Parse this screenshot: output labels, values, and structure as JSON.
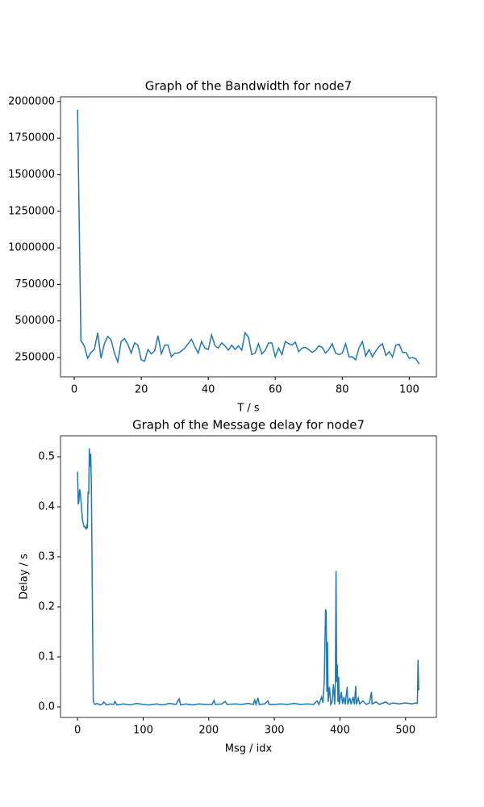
{
  "chart_data": [
    {
      "type": "line",
      "title": "Graph of the Bandwidth for node7",
      "xlabel": "T / s",
      "x": [
        1,
        2,
        3,
        4,
        5,
        6,
        7,
        8,
        9,
        10,
        11,
        12,
        13,
        14,
        15,
        16,
        17,
        18,
        19,
        20,
        21,
        22,
        23,
        24,
        25,
        26,
        27,
        28,
        29,
        30,
        31,
        32,
        33,
        34,
        35,
        36,
        37,
        38,
        39,
        40,
        41,
        42,
        43,
        44,
        45,
        46,
        47,
        48,
        49,
        50,
        51,
        52,
        53,
        54,
        55,
        56,
        57,
        58,
        59,
        60,
        61,
        62,
        63,
        64,
        65,
        66,
        67,
        68,
        69,
        70,
        71,
        72,
        73,
        74,
        75,
        76,
        77,
        78,
        79,
        80,
        81,
        82,
        83,
        84,
        85,
        86,
        87,
        88,
        89,
        90,
        91,
        92,
        93,
        94,
        95,
        96,
        97,
        98,
        99,
        100,
        101,
        102,
        103
      ],
      "series": [
        {
          "color": "#1f77b4",
          "values": [
            1945000,
            365000,
            330000,
            245000,
            285000,
            305000,
            420000,
            245000,
            345000,
            395000,
            370000,
            280000,
            220000,
            360000,
            380000,
            340000,
            280000,
            350000,
            335000,
            235000,
            225000,
            305000,
            275000,
            295000,
            400000,
            275000,
            335000,
            335000,
            255000,
            280000,
            280000,
            295000,
            315000,
            345000,
            375000,
            325000,
            280000,
            360000,
            315000,
            305000,
            405000,
            330000,
            315000,
            350000,
            330000,
            300000,
            335000,
            305000,
            330000,
            300000,
            420000,
            390000,
            270000,
            280000,
            345000,
            275000,
            300000,
            350000,
            350000,
            255000,
            315000,
            270000,
            360000,
            345000,
            335000,
            355000,
            290000,
            315000,
            320000,
            305000,
            285000,
            300000,
            330000,
            320000,
            280000,
            305000,
            345000,
            280000,
            270000,
            280000,
            345000,
            255000,
            255000,
            235000,
            315000,
            360000,
            260000,
            305000,
            255000,
            295000,
            325000,
            345000,
            265000,
            290000,
            255000,
            335000,
            340000,
            285000,
            285000,
            245000,
            250000,
            240000,
            205000
          ]
        }
      ],
      "xlim": [
        -4.1,
        108.1
      ],
      "xticks": [
        0,
        20,
        40,
        60,
        80,
        100
      ],
      "ylim": [
        118000,
        2032000
      ],
      "yticks": [
        250000,
        500000,
        750000,
        1000000,
        1250000,
        1500000,
        1750000,
        2000000
      ]
    },
    {
      "type": "line",
      "title": "Graph of the Message delay for node7",
      "xlabel": "Msg / idx",
      "ylabel": "Delay / s",
      "x": [
        0,
        1,
        2,
        3,
        4,
        5,
        6,
        7,
        8,
        9,
        10,
        11,
        12,
        13,
        14,
        15,
        16,
        17,
        18,
        19,
        20,
        21,
        22,
        23,
        24,
        25,
        26,
        30,
        34,
        38,
        40,
        44,
        50,
        55,
        57,
        60,
        70,
        80,
        90,
        100,
        110,
        120,
        130,
        140,
        150,
        153,
        155,
        157,
        165,
        175,
        185,
        195,
        205,
        208,
        210,
        220,
        225,
        228,
        240,
        250,
        260,
        268,
        270,
        272,
        275,
        277,
        285,
        290,
        292,
        300,
        310,
        320,
        330,
        340,
        350,
        360,
        365,
        368,
        372,
        374,
        376,
        378,
        379,
        380,
        381,
        382,
        384,
        386,
        388,
        390,
        392,
        393,
        394,
        395,
        396,
        397,
        398,
        399,
        402,
        404,
        406,
        408,
        411,
        412,
        415,
        417,
        420,
        422,
        424,
        425,
        428,
        430,
        435,
        440,
        445,
        448,
        449,
        455,
        460,
        470,
        475,
        480,
        490,
        500,
        510,
        515,
        518,
        519,
        520,
        521
      ],
      "series": [
        {
          "color": "#1f77b4",
          "values": [
            0.47,
            0.405,
            0.41,
            0.435,
            0.43,
            0.415,
            0.4,
            0.38,
            0.37,
            0.365,
            0.36,
            0.36,
            0.358,
            0.356,
            0.365,
            0.357,
            0.43,
            0.425,
            0.517,
            0.48,
            0.506,
            0.45,
            0.3,
            0.15,
            0.012,
            0.008,
            0.005,
            0.007,
            0.004,
            0.006,
            0.01,
            0.004,
            0.006,
            0.005,
            0.011,
            0.004,
            0.006,
            0.004,
            0.007,
            0.005,
            0.004,
            0.006,
            0.004,
            0.007,
            0.005,
            0.012,
            0.016,
            0.004,
            0.006,
            0.004,
            0.006,
            0.005,
            0.005,
            0.013,
            0.005,
            0.006,
            0.011,
            0.005,
            0.006,
            0.005,
            0.007,
            0.005,
            0.014,
            0.005,
            0.018,
            0.005,
            0.006,
            0.012,
            0.005,
            0.005,
            0.006,
            0.005,
            0.007,
            0.005,
            0.006,
            0.005,
            0.012,
            0.005,
            0.02,
            0.008,
            0.05,
            0.195,
            0.19,
            0.03,
            0.13,
            0.01,
            0.04,
            0.005,
            0.01,
            0.045,
            0.005,
            0.05,
            0.272,
            0.05,
            0.085,
            0.01,
            0.06,
            0.005,
            0.03,
            0.006,
            0.02,
            0.005,
            0.04,
            0.005,
            0.018,
            0.005,
            0.02,
            0.005,
            0.042,
            0.005,
            0.018,
            0.006,
            0.012,
            0.005,
            0.008,
            0.03,
            0.006,
            0.01,
            0.005,
            0.01,
            0.005,
            0.008,
            0.006,
            0.008,
            0.006,
            0.008,
            0.007,
            0.094,
            0.035,
            0.037
          ]
        }
      ],
      "xlim": [
        -26,
        547
      ],
      "xticks": [
        0,
        100,
        200,
        300,
        400,
        500
      ],
      "ylim": [
        -0.021,
        0.542
      ],
      "yticks": [
        {
          "value": 0,
          "label": "0.0"
        },
        0.1,
        0.2,
        0.3,
        0.4,
        0.5
      ]
    }
  ]
}
